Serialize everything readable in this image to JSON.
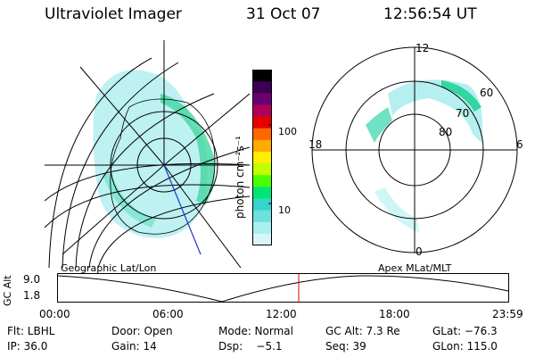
{
  "header": {
    "instrument": "Ultraviolet Imager",
    "date": "31 Oct 07",
    "time": "12:56:54 UT"
  },
  "left_map": {
    "label": "Geographic Lat/Lon"
  },
  "right_map": {
    "label": "Apex MLat/MLT",
    "mlt_labels": [
      "12",
      "18",
      "6",
      "0"
    ],
    "lat_labels": [
      "60",
      "70",
      "80"
    ]
  },
  "colorbar": {
    "unit_label": "photon cm⁻²s⁻¹",
    "ticks": [
      "100",
      "10"
    ],
    "colors": [
      "#000000",
      "#3b004f",
      "#6a0070",
      "#b0005a",
      "#e60000",
      "#ff6600",
      "#ffaa00",
      "#ffee00",
      "#bfff00",
      "#4cff00",
      "#00e676",
      "#33d6c8",
      "#6de0e0",
      "#a8f0f0",
      "#d8f6f6"
    ]
  },
  "altitude_panel": {
    "y_label": "GC Alt",
    "y_ticks": [
      "9.0",
      "1.8"
    ],
    "x_ticks": [
      "00:00",
      "06:00",
      "12:00",
      "18:00",
      "23:59"
    ],
    "marker_color": "#e00000"
  },
  "status": {
    "row1": {
      "flt": "Flt: LBHL",
      "door": "Door: Open",
      "mode": "Mode: Normal",
      "gcalt": "GC Alt: 7.3 Re",
      "glat": "GLat: −76.3"
    },
    "row2": {
      "ip": "IP: 36.0",
      "gain": "Gain: 14",
      "dsp": "Dsp:    −5.1",
      "seq": "Seq: 39",
      "glon": "GLon: 115.0"
    }
  }
}
